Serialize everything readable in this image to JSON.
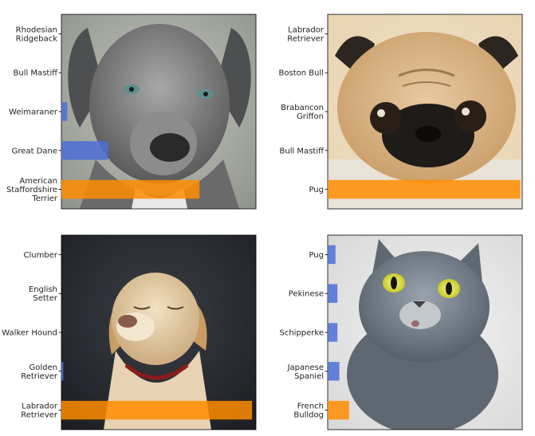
{
  "chart_data": [
    {
      "type": "bar",
      "orientation": "horizontal",
      "image_subject": "grey dog",
      "categories": [
        "Rhodesian Ridgeback",
        "Bull Mastiff",
        "Weimaraner",
        "Great Dane",
        "American Staffordshire Terrier"
      ],
      "values": [
        0.0,
        0.0,
        0.03,
        0.24,
        0.71
      ],
      "colors": [
        "#4c6fd6",
        "#4c6fd6",
        "#4c6fd6",
        "#4c6fd6",
        "#ff8c00"
      ],
      "xlim": [
        0,
        1
      ],
      "title": "",
      "xlabel": "",
      "ylabel": ""
    },
    {
      "type": "bar",
      "orientation": "horizontal",
      "image_subject": "pug",
      "categories": [
        "Labrador Retriever",
        "Boston Bull",
        "Brabancon Griffon",
        "Bull Mastiff",
        "Pug"
      ],
      "values": [
        0.0,
        0.0,
        0.0,
        0.0,
        0.99
      ],
      "colors": [
        "#4c6fd6",
        "#4c6fd6",
        "#4c6fd6",
        "#4c6fd6",
        "#ff8c00"
      ],
      "xlim": [
        0,
        1
      ],
      "title": "",
      "xlabel": "",
      "ylabel": ""
    },
    {
      "type": "bar",
      "orientation": "horizontal",
      "image_subject": "yellow labrador",
      "categories": [
        "Clumber",
        "English Setter",
        "Walker Hound",
        "Golden Retriever",
        "Labrador Retriever"
      ],
      "values": [
        0.0,
        0.0,
        0.0,
        0.01,
        0.98
      ],
      "colors": [
        "#4c6fd6",
        "#4c6fd6",
        "#4c6fd6",
        "#4c6fd6",
        "#ff8c00"
      ],
      "xlim": [
        0,
        1
      ],
      "title": "",
      "xlabel": "",
      "ylabel": ""
    },
    {
      "type": "bar",
      "orientation": "horizontal",
      "image_subject": "grey cat",
      "categories": [
        "Pug",
        "Pekinese",
        "Schipperke",
        "Japanese Spaniel",
        "French Bulldog"
      ],
      "values": [
        0.04,
        0.05,
        0.05,
        0.06,
        0.11
      ],
      "colors": [
        "#4c6fd6",
        "#4c6fd6",
        "#4c6fd6",
        "#4c6fd6",
        "#ff8c00"
      ],
      "xlim": [
        0,
        1
      ],
      "title": "",
      "xlabel": "",
      "ylabel": ""
    }
  ]
}
